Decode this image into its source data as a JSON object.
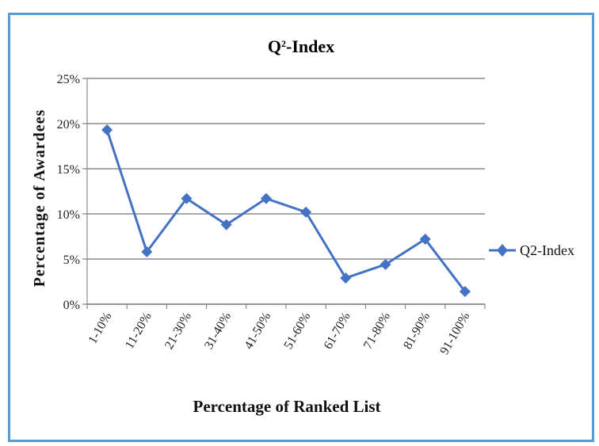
{
  "chart_data": {
    "type": "line",
    "title_main": "Q",
    "title_sup": "2",
    "title_rest": "-Index",
    "xlabel": "Percentage of Ranked List",
    "ylabel": "Percentage of Awardees",
    "categories": [
      "1-10%",
      "11-20%",
      "21-30%",
      "31-40%",
      "41-50%",
      "51-60%",
      "61-70%",
      "71-80%",
      "81-90%",
      "91-100%"
    ],
    "series": [
      {
        "name": "Q2-Index",
        "values": [
          19.3,
          5.8,
          11.7,
          8.8,
          11.7,
          10.2,
          2.9,
          4.4,
          7.2,
          1.4
        ]
      }
    ],
    "ylim": [
      0,
      25
    ],
    "yticks": [
      0,
      5,
      10,
      15,
      20,
      25
    ],
    "ytick_labels": [
      "0%",
      "5%",
      "10%",
      "15%",
      "20%",
      "25%"
    ],
    "grid": true,
    "legend": "right",
    "colors": {
      "series": "#4472c4",
      "grid": "#8c8c8c",
      "frame": "#5b9bd5"
    }
  }
}
